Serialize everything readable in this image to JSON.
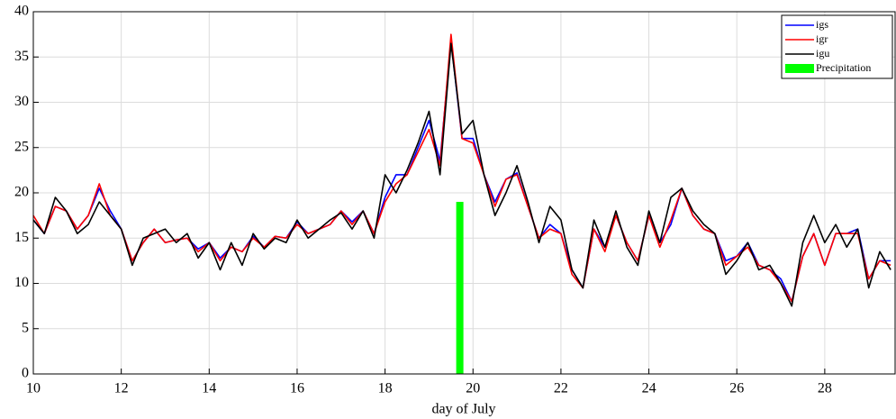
{
  "chart_data": {
    "type": "line",
    "xlabel": "day of July",
    "xlim": [
      10,
      29.6
    ],
    "ylim": [
      0,
      40
    ],
    "xticks": [
      10,
      12,
      14,
      16,
      18,
      20,
      22,
      24,
      26,
      28
    ],
    "yticks": [
      0,
      5,
      10,
      15,
      20,
      25,
      30,
      35,
      40
    ],
    "grid": true,
    "legend": "upper right",
    "x": [
      10,
      10.25,
      10.5,
      10.75,
      11,
      11.25,
      11.5,
      11.75,
      12,
      12.25,
      12.5,
      12.75,
      13,
      13.25,
      13.5,
      13.75,
      14,
      14.25,
      14.5,
      14.75,
      15,
      15.25,
      15.5,
      15.75,
      16,
      16.25,
      16.5,
      16.75,
      17,
      17.25,
      17.5,
      17.75,
      18,
      18.25,
      18.5,
      18.75,
      19,
      19.25,
      19.5,
      19.75,
      20,
      20.25,
      20.5,
      20.75,
      21,
      21.25,
      21.5,
      21.75,
      22,
      22.25,
      22.5,
      22.75,
      23,
      23.25,
      23.5,
      23.75,
      24,
      24.25,
      24.5,
      24.75,
      25,
      25.25,
      25.5,
      25.75,
      26,
      26.25,
      26.5,
      26.75,
      27,
      27.25,
      27.5,
      27.75,
      28,
      28.25,
      28.5,
      28.75,
      29,
      29.25,
      29.5
    ],
    "series": [
      {
        "name": "igs",
        "color": "#0000ff",
        "values": [
          17,
          15.5,
          18.5,
          18,
          16,
          17.5,
          20.5,
          18,
          16,
          12.5,
          14.5,
          16,
          14.5,
          14.8,
          15,
          13.8,
          14.5,
          12.8,
          14,
          13.5,
          15.2,
          14,
          15.2,
          15,
          16.8,
          15.5,
          16,
          16.5,
          18,
          16.8,
          18,
          15.5,
          19.5,
          22,
          22,
          25,
          28,
          23.5,
          36.8,
          26,
          26,
          22,
          19,
          21.5,
          22.2,
          18.5,
          15,
          16.5,
          15.5,
          11.5,
          9.5,
          16,
          14,
          17.5,
          14.5,
          12.5,
          17.5,
          14.5,
          16.5,
          20.5,
          17.5,
          16,
          15.5,
          12.5,
          13,
          14.5,
          12,
          11.5,
          10.5,
          8,
          13,
          15.5,
          12,
          15.5,
          15.5,
          16,
          10.5,
          12.5,
          12.5
        ]
      },
      {
        "name": "igr",
        "color": "#ff0000",
        "values": [
          17.5,
          15.5,
          18.5,
          18,
          16,
          17.5,
          21,
          17.5,
          16,
          12.5,
          14.5,
          16,
          14.5,
          14.8,
          15,
          13.5,
          14.5,
          12.5,
          14,
          13.5,
          15,
          14,
          15.2,
          15,
          16.5,
          15.5,
          16,
          16.5,
          18,
          16.5,
          18,
          15.5,
          19,
          21,
          22,
          24.5,
          27,
          23,
          37.5,
          26,
          25.5,
          22,
          18.5,
          21.5,
          22,
          18.5,
          15,
          16,
          15.5,
          11,
          9.5,
          16,
          13.5,
          17.5,
          14.5,
          12.5,
          17.5,
          14,
          17,
          20.5,
          17.5,
          16,
          15.5,
          12,
          13,
          14,
          12,
          11.5,
          10,
          8,
          13,
          15.5,
          12,
          15.5,
          15.5,
          15.5,
          10.5,
          12.5,
          12
        ]
      },
      {
        "name": "igu",
        "color": "#000000",
        "values": [
          17,
          15.5,
          19.5,
          18,
          15.5,
          16.5,
          19,
          17.5,
          16,
          12,
          15,
          15.5,
          16,
          14.5,
          15.5,
          12.8,
          14.5,
          11.5,
          14.5,
          12,
          15.5,
          13.8,
          15,
          14.5,
          17,
          15,
          16,
          17,
          17.8,
          16,
          18,
          15,
          22,
          20,
          22.5,
          25.5,
          29,
          22,
          36.5,
          26.5,
          28,
          22,
          17.5,
          20,
          23,
          19,
          14.5,
          18.5,
          17,
          11.5,
          9.5,
          17,
          14,
          18,
          14,
          12,
          18,
          14.5,
          19.5,
          20.5,
          18,
          16.5,
          15.5,
          11,
          12.5,
          14.5,
          11.5,
          12,
          10,
          7.5,
          14.5,
          17.5,
          14.5,
          16.5,
          14,
          16,
          9.5,
          13.5,
          11.5
        ]
      }
    ],
    "bars": {
      "name": "Precipitation",
      "color": "#00ff00",
      "x": [
        19.7
      ],
      "values": [
        19
      ]
    }
  }
}
